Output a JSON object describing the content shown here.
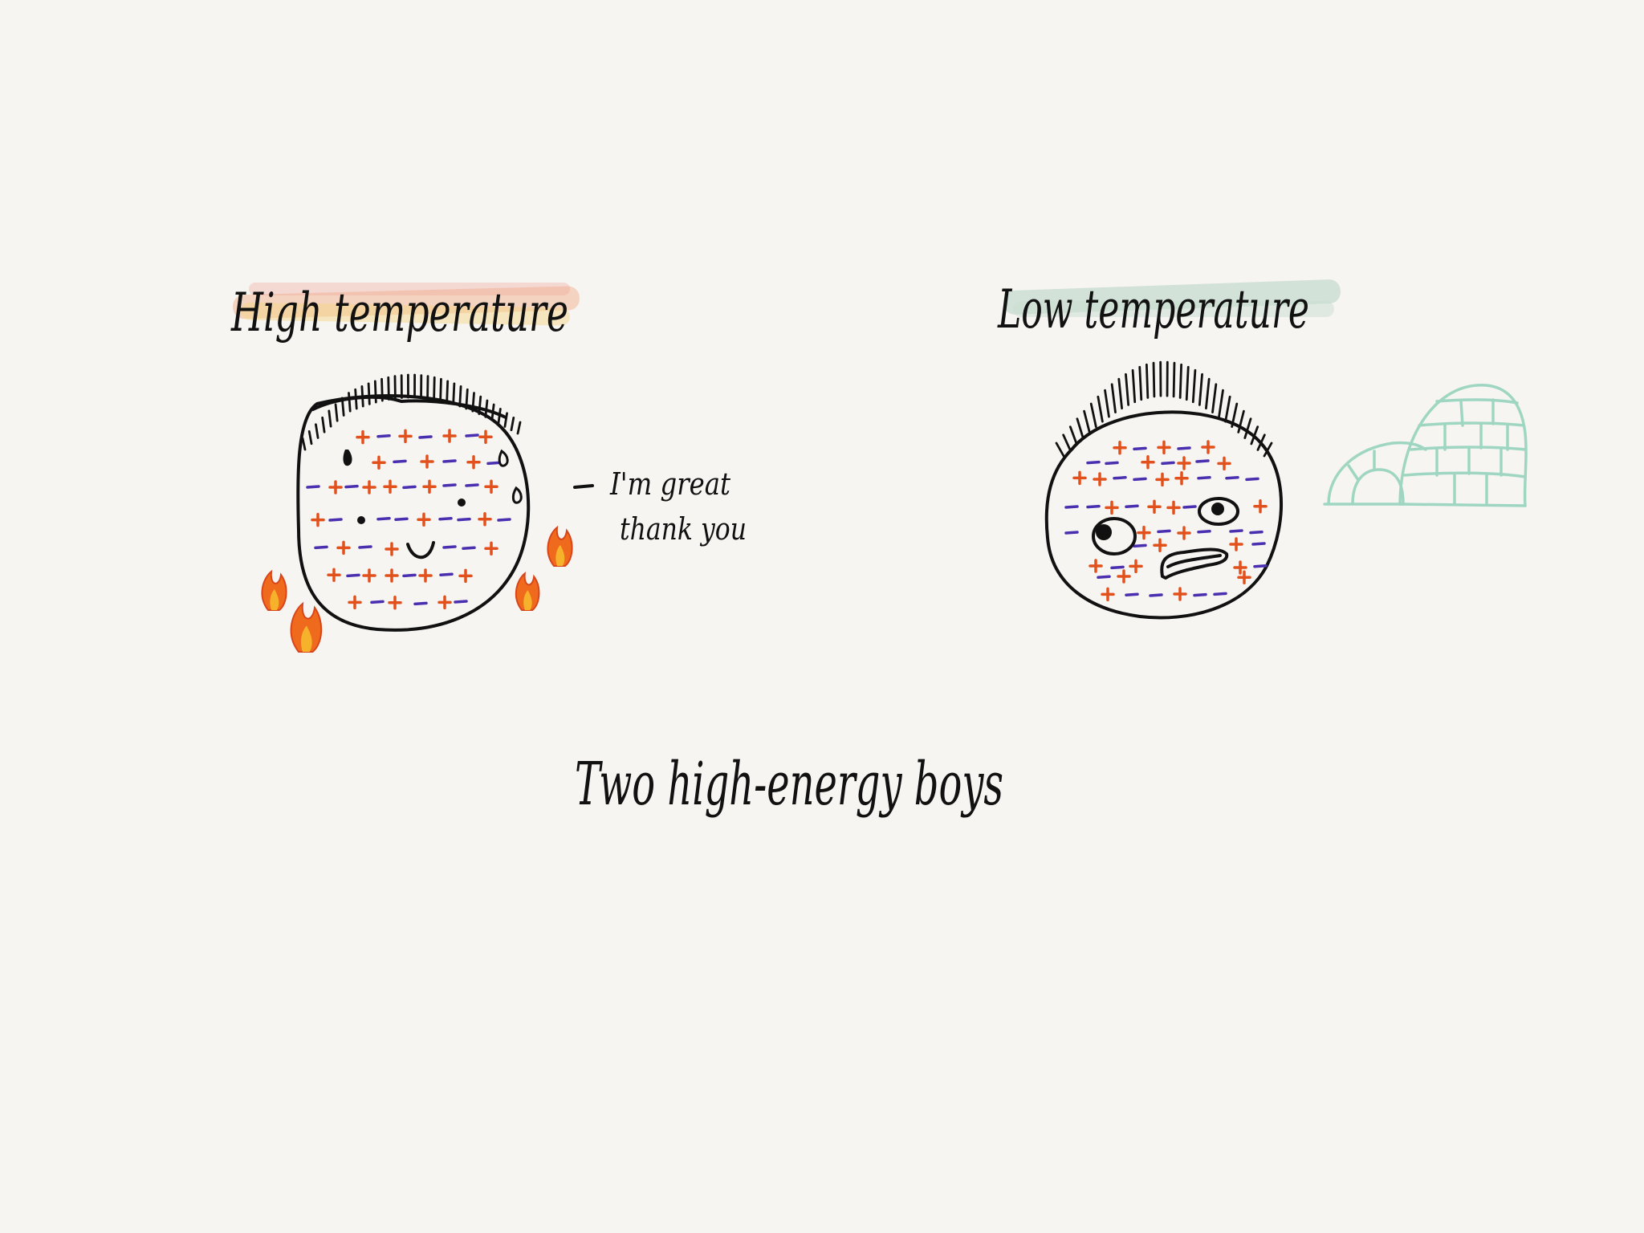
{
  "labels": {
    "high_title": "High temperature",
    "low_title": "Low temperature",
    "speech": "I'm great",
    "speech_line2": "thank you",
    "caption": "Two high-energy boys"
  },
  "colors": {
    "background": "#f6f5f2",
    "ink": "#111111",
    "positive_charge": "#e2501c",
    "negative_charge": "#4a2fb0",
    "hot_highlight": "#f3a27a",
    "hot_highlight_2": "#f7c95a",
    "cold_highlight": "#a9cbb9",
    "igloo": "#9fd6c2",
    "flame_outer": "#f06a1e",
    "flame_inner": "#f7b22b"
  },
  "icons": {
    "hot_face": "smiling-face-icon",
    "cold_face": "frightened-face-icon",
    "flames": "flame-icon",
    "igloo": "igloo-icon"
  }
}
